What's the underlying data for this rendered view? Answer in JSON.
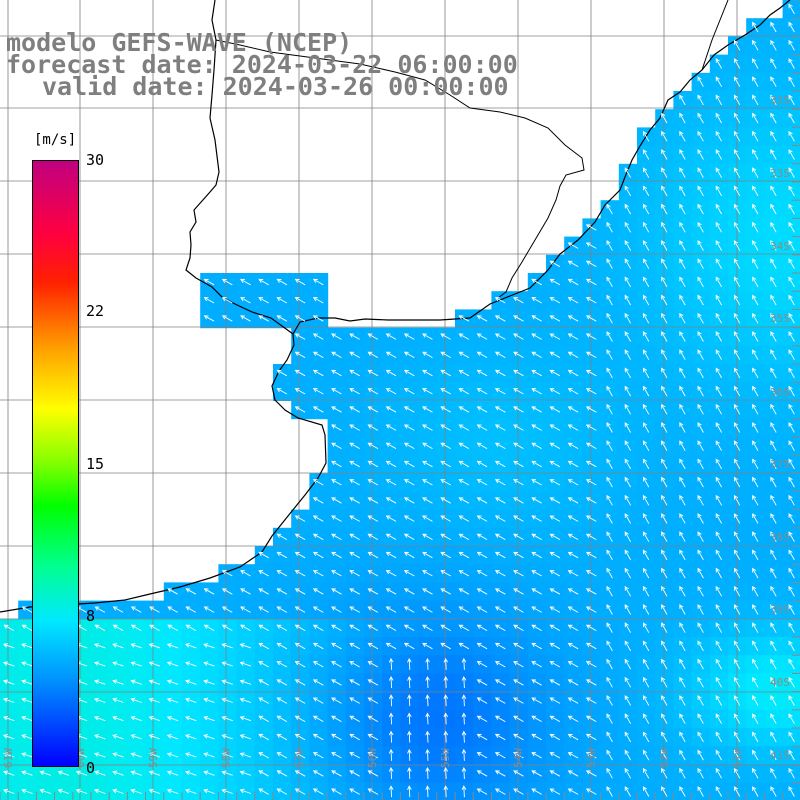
{
  "title": {
    "line1": "modelo GEFS-WAVE (NCEP)",
    "line2": "forecast date: 2024-03-22 06:00:00",
    "line3": "valid date: 2024-03-26 00:00:00"
  },
  "colorbar": {
    "unit": "[m/s]",
    "ticks": [
      "30",
      "22",
      "15",
      "8",
      "0"
    ],
    "tick_values": [
      30,
      22,
      15,
      8,
      0
    ],
    "min": 0,
    "max": 30,
    "colors": [
      "#0000ff",
      "#0090ff",
      "#00e8ff",
      "#00ff90",
      "#00ff00",
      "#80ff00",
      "#ffff00",
      "#ffa000",
      "#ff2000",
      "#ff0040",
      "#c00080"
    ]
  },
  "lat_labels": [
    "32S",
    "33S",
    "34S",
    "35S",
    "36S",
    "37S",
    "38S",
    "39S",
    "40S",
    "41S"
  ],
  "lon_labels": [
    "61W",
    "60W",
    "59W",
    "58W",
    "57W",
    "56W",
    "55W",
    "54W",
    "53W",
    "52W",
    "51W"
  ],
  "field": {
    "quantity": "wind speed",
    "dominant_direction": "from southeast toward northwest",
    "land_color": "#ffffff",
    "grid_color": "#808080"
  }
}
